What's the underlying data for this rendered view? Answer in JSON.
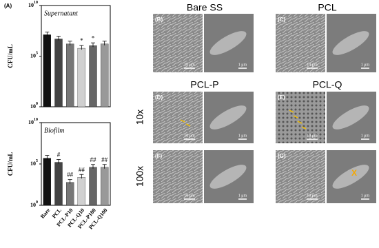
{
  "figure_label": "(A)",
  "chart_data": [
    {
      "type": "bar",
      "title": "Supernatant",
      "ylabel": "CFU/mL",
      "log_scale": true,
      "values": [
        13000000,
        5000000,
        1600000,
        600000,
        1100000,
        1600000
      ],
      "colors": [
        "#111111",
        "#444444",
        "#777777",
        "#d0d0d0",
        "#666666",
        "#999999"
      ],
      "annotations": [
        null,
        null,
        null,
        "*",
        "*",
        null
      ],
      "ylim": [
        1,
        10000000000
      ],
      "yticks": [
        {
          "value": 1,
          "label": "10^0"
        },
        {
          "value": 100000,
          "label": "10^5"
        },
        {
          "value": 10000000000,
          "label": "10^10"
        }
      ]
    },
    {
      "type": "bar",
      "title": "Biofilm",
      "ylabel": "CFU/mL",
      "log_scale": true,
      "categories": [
        "Bare",
        "PCL",
        "PCL-P10",
        "PCL-Q10",
        "PCL-P100",
        "PCL-Q100"
      ],
      "values": [
        500000,
        160000,
        600,
        2500,
        40000,
        40000
      ],
      "colors": [
        "#111111",
        "#444444",
        "#777777",
        "#d0d0d0",
        "#666666",
        "#999999"
      ],
      "annotations": [
        null,
        "#",
        "##",
        "##",
        "##",
        "##"
      ],
      "ylim": [
        1,
        10000000000
      ],
      "yticks": [
        {
          "value": 1,
          "label": "10^0"
        },
        {
          "value": 100000,
          "label": "10^5"
        },
        {
          "value": 10000000000,
          "label": "10^10"
        }
      ]
    }
  ],
  "images": {
    "columns": [
      "Bare SS",
      "PCL",
      "PCL-P",
      "PCL-Q"
    ],
    "rows": [
      "10x",
      "100x"
    ],
    "panels": [
      {
        "label": "(B)",
        "scale_left": "10 μm",
        "scale_right": "1 μm"
      },
      {
        "label": "(C)",
        "scale_left": "10 μm",
        "scale_right": "1 μm"
      },
      {
        "label": "(D)",
        "scale_left": "10 μm",
        "scale_right": "1 μm"
      },
      {
        "label": "(E)",
        "scale_left": "10 μm",
        "scale_right": "1 μm"
      },
      {
        "label": "(F)",
        "scale_left": "10 μm",
        "scale_right": "1 μm"
      },
      {
        "label": "(G)",
        "scale_left": "10 μm",
        "scale_right": "1 μm"
      }
    ],
    "marker": "X"
  }
}
